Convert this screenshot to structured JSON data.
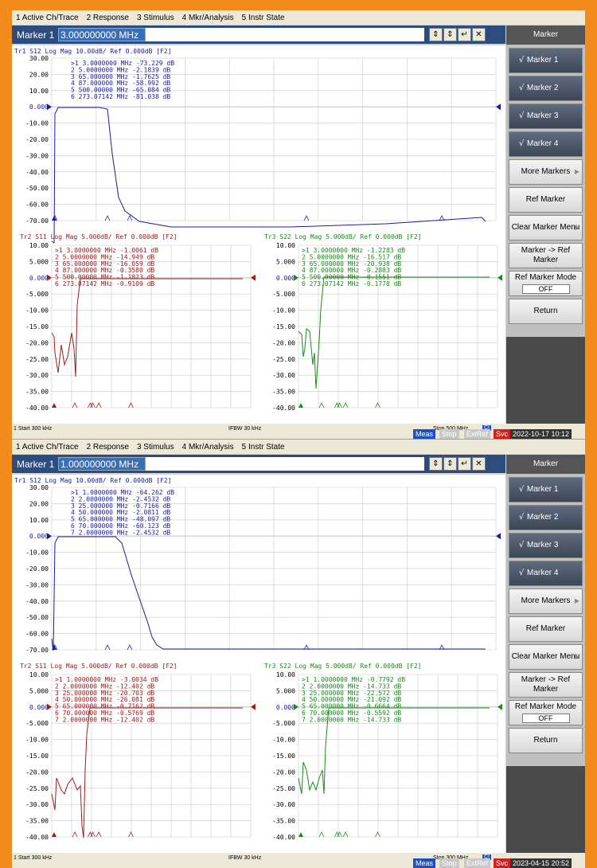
{
  "menubar": [
    "1 Active Ch/Trace",
    "2 Response",
    "3 Stimulus",
    "4 Mkr/Analysis",
    "5 Instr State"
  ],
  "screens": [
    {
      "entry_label": "Marker 1",
      "entry_value": "3.000000000 MHz",
      "softkey_title": "Marker",
      "softkeys": [
        {
          "label": "Marker 1",
          "checked": true
        },
        {
          "label": "Marker 2",
          "checked": true
        },
        {
          "label": "Marker 3",
          "checked": true
        },
        {
          "label": "Marker 4",
          "checked": true
        },
        {
          "label": "More Markers",
          "arrow": true
        },
        {
          "label": "Ref Marker"
        },
        {
          "label": "Clear Marker Menu",
          "arrow": true
        },
        {
          "label": "Marker -> Ref Marker"
        },
        {
          "label": "Ref Marker Mode",
          "sub": "OFF"
        },
        {
          "label": "Return"
        }
      ],
      "status": {
        "start": "1  Start 300 kHz",
        "ifbw": "IFBW 30 kHz",
        "stop": "Stop 500 MHz",
        "c1": "C!"
      },
      "bottom": {
        "meas": "Meas",
        "stop": "Stop",
        "extref": "ExtRef",
        "svc": "Svc",
        "time": "2022-10-17 10:12"
      },
      "panels": [
        {
          "name": "tr1",
          "header": "Tr1  S12 Log Mag 10.00dB/ Ref 0.000dB [F2]",
          "ticks": [
            "30.00",
            "20.00",
            "10.00",
            "0.000",
            "-10.00",
            "-20.00",
            "-30.00",
            "-40.00",
            "-50.00",
            "-60.00",
            "-70.00"
          ],
          "color": "#1a1aa0",
          "markers": [
            ">1  3.0000000 MHz -73.229 dB",
            "  2  5.0000000 MHz -2.1839 dB",
            "  3  65.000000 MHz -1.7625 dB",
            "  4  87.000000 MHz -58.992 dB",
            "  5  500.00000 MHz -65.084 dB",
            "  6  273.07142 MHz -81.038 dB"
          ]
        },
        {
          "name": "tr2",
          "header": "Tr2 S11 Log Mag 5.000dB/ Ref 0.000dB [F2]",
          "ticks": [
            "10.00",
            "5.000",
            "0.000",
            "-5.000",
            "-10.00",
            "-15.00",
            "-20.00",
            "-25.00",
            "-30.00",
            "-35.00",
            "-40.00"
          ],
          "color": "#a01a1a",
          "markers": [
            ">1  3.0000000 MHz -1.0061 dB",
            "  2  5.0000000 MHz -14.949 dB",
            "  3  65.000000 MHz -16.059 dB",
            "  4  87.000000 MHz -0.3580 dB",
            "  5  500.00000 MHz -1.1823 dB",
            "  6  273.07142 MHz -0.9109 dB"
          ]
        },
        {
          "name": "tr3",
          "header": "Tr3 S22 Log Mag 5.000dB/ Ref 0.000dB [F2]",
          "ticks": [
            "10.00",
            "5.000",
            "0.000",
            "-5.000",
            "-10.00",
            "-15.00",
            "-20.00",
            "-25.00",
            "-30.00",
            "-35.00",
            "-40.00"
          ],
          "color": "#1a8a1a",
          "markers": [
            ">1  3.0000000 MHz -1.2283 dB",
            "  2  5.0000000 MHz -16.517 dB",
            "  3  65.000000 MHz -20.938 dB",
            "  4  87.000000 MHz -0.2883 dB",
            "  5  500.00000 MHz -0.1551 dB",
            "  6  273.07142 MHz -0.1778 dB"
          ]
        }
      ]
    },
    {
      "entry_label": "Marker 1",
      "entry_value": "1.000000000 MHz",
      "softkey_title": "Marker",
      "softkeys": [
        {
          "label": "Marker 1",
          "checked": true
        },
        {
          "label": "Marker 2",
          "checked": true
        },
        {
          "label": "Marker 3",
          "checked": true
        },
        {
          "label": "Marker 4",
          "checked": true
        },
        {
          "label": "More Markers",
          "arrow": true
        },
        {
          "label": "Ref Marker"
        },
        {
          "label": "Clear Marker Menu",
          "arrow": true
        },
        {
          "label": "Marker -> Ref Marker"
        },
        {
          "label": "Ref Marker Mode",
          "sub": "OFF"
        },
        {
          "label": "Return"
        }
      ],
      "status": {
        "start": "1  Start 300 kHz",
        "ifbw": "IFBW 30 kHz",
        "stop": "Stop 300 MHz",
        "c1": "C!"
      },
      "bottom": {
        "meas": "Meas",
        "stop": "Stop",
        "extref": "ExtRef",
        "svc": "Svc",
        "time": "2023-04-15 20:52"
      },
      "panels": [
        {
          "name": "tr1",
          "header": "Tr1  S12 Log Mag 10.00dB/ Ref 0.000dB [F2]",
          "ticks": [
            "30.00",
            "20.00",
            "10.00",
            "0.000",
            "-10.00",
            "-20.00",
            "-30.00",
            "-40.00",
            "-50.00",
            "-60.00",
            "-70.00"
          ],
          "color": "#1a1aa0",
          "markers": [
            ">1  1.0000000 MHz -64.262 dB",
            "  2  2.0000000 MHz -2.4532 dB",
            "  3  25.000000 MHz -0.7166 dB",
            "  4  50.000000 MHz -2.0811 dB",
            "  5  65.000000 MHz -48.097 dB",
            "  6  70.000000 MHz -60.123 dB",
            "  7  2.0000000 MHz -2.4532 dB"
          ]
        },
        {
          "name": "tr2",
          "header": "Tr2 S11 Log Mag 5.000dB/ Ref 0.000dB [F2]",
          "ticks": [
            "10.00",
            "5.000",
            "0.000",
            "-5.000",
            "-10.00",
            "-15.00",
            "-20.00",
            "-25.00",
            "-30.00",
            "-35.00",
            "-40.00"
          ],
          "color": "#a01a1a",
          "markers": [
            ">1  1.0000000 MHz -3.0034 dB",
            "  2  2.0000000 MHz -12.402 dB",
            "  3  25.000000 MHz -20.703 dB",
            "  4  50.000000 MHz -26.081 dB",
            "  5  65.000000 MHz -0.7162 dB",
            "  6  70.000000 MHz -0.5769 dB",
            "  7  2.0000000 MHz -12.402 dB"
          ]
        },
        {
          "name": "tr3",
          "header": "Tr3 S22 Log Mag 5.000dB/ Ref 0.000dB [F2]",
          "ticks": [
            "10.00",
            "5.000",
            "0.000",
            "-5.000",
            "-10.00",
            "-15.00",
            "-20.00",
            "-25.00",
            "-30.00",
            "-35.00",
            "-40.00"
          ],
          "color": "#1a8a1a",
          "markers": [
            ">1  1.0000000 MHz -0.7792 dB",
            "  2  2.0000000 MHz -14.733 dB",
            "  3  25.000000 MHz -22.572 dB",
            "  4  50.000000 MHz -21.092 dB",
            "  5  65.000000 MHz -0.6664 dB",
            "  6  70.000000 MHz -0.5592 dB",
            "  7  2.0000000 MHz -14.733 dB"
          ]
        }
      ]
    }
  ]
}
